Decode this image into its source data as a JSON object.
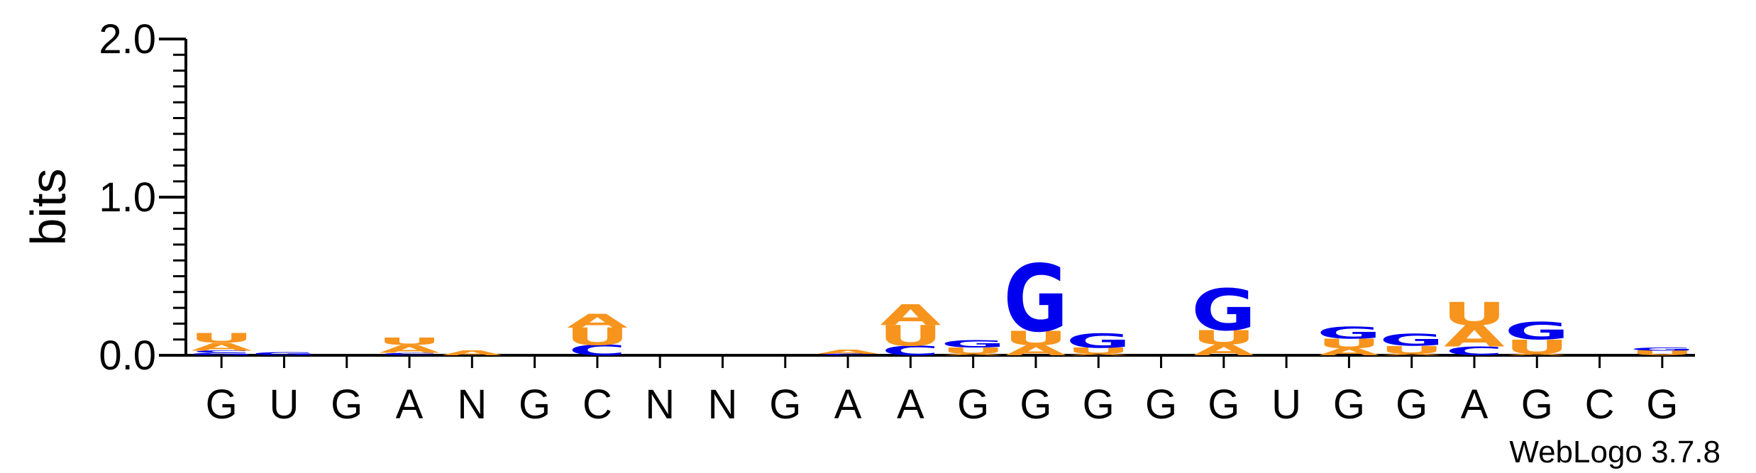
{
  "chart_data": {
    "type": "sequence-logo",
    "ylabel": "bits",
    "ylim": [
      0,
      2.0
    ],
    "yticks": [
      {
        "value": 0.0,
        "label": "0.0"
      },
      {
        "value": 1.0,
        "label": "1.0"
      },
      {
        "value": 2.0,
        "label": "2.0"
      }
    ],
    "positions": [
      "G",
      "U",
      "G",
      "A",
      "N",
      "G",
      "C",
      "N",
      "N",
      "G",
      "A",
      "A",
      "G",
      "G",
      "G",
      "G",
      "G",
      "U",
      "G",
      "G",
      "A",
      "G",
      "C",
      "G"
    ],
    "stacks": [
      [
        {
          "l": "G",
          "h": 0.015
        },
        {
          "l": "C",
          "h": 0.015
        },
        {
          "l": "A",
          "h": 0.05
        },
        {
          "l": "U",
          "h": 0.06
        }
      ],
      [
        {
          "l": "G",
          "h": 0.02
        }
      ],
      [],
      [
        {
          "l": "C",
          "h": 0.015
        },
        {
          "l": "A",
          "h": 0.05
        },
        {
          "l": "U",
          "h": 0.045
        }
      ],
      [
        {
          "l": "A",
          "h": 0.03
        }
      ],
      [],
      [
        {
          "l": "C",
          "h": 0.065
        },
        {
          "l": "U",
          "h": 0.11
        },
        {
          "l": "A",
          "h": 0.085
        }
      ],
      [],
      [],
      [],
      [
        {
          "l": "C",
          "h": 0.01
        },
        {
          "l": "A",
          "h": 0.025
        }
      ],
      [
        {
          "l": "C",
          "h": 0.06
        },
        {
          "l": "U",
          "h": 0.13
        },
        {
          "l": "A",
          "h": 0.13
        }
      ],
      [
        {
          "l": "A",
          "h": 0.01
        },
        {
          "l": "U",
          "h": 0.04
        },
        {
          "l": "G",
          "h": 0.045
        }
      ],
      [
        {
          "l": "A",
          "h": 0.065
        },
        {
          "l": "U",
          "h": 0.09
        },
        {
          "l": "G",
          "h": 0.42
        }
      ],
      [
        {
          "l": "A",
          "h": 0.01
        },
        {
          "l": "U",
          "h": 0.04
        },
        {
          "l": "G",
          "h": 0.09
        }
      ],
      [],
      [
        {
          "l": "A",
          "h": 0.07
        },
        {
          "l": "U",
          "h": 0.09
        },
        {
          "l": "G",
          "h": 0.26
        }
      ],
      [],
      [
        {
          "l": "A",
          "h": 0.045
        },
        {
          "l": "U",
          "h": 0.06
        },
        {
          "l": "G",
          "h": 0.075
        }
      ],
      [
        {
          "l": "A",
          "h": 0.01
        },
        {
          "l": "U",
          "h": 0.05
        },
        {
          "l": "G",
          "h": 0.075
        }
      ],
      [
        {
          "l": "C",
          "h": 0.055
        },
        {
          "l": "A",
          "h": 0.135
        },
        {
          "l": "U",
          "h": 0.145
        }
      ],
      [
        {
          "l": "A",
          "h": 0.01
        },
        {
          "l": "U",
          "h": 0.09
        },
        {
          "l": "G",
          "h": 0.11
        }
      ],
      [],
      [
        {
          "l": "U",
          "h": 0.03
        },
        {
          "l": "G",
          "h": 0.02
        }
      ]
    ],
    "colors": {
      "A": "#f7941d",
      "U": "#f7941d",
      "G": "#0000ee",
      "C": "#0000ee",
      "N": "#000000"
    },
    "credit": "WebLogo 3.7.8"
  }
}
